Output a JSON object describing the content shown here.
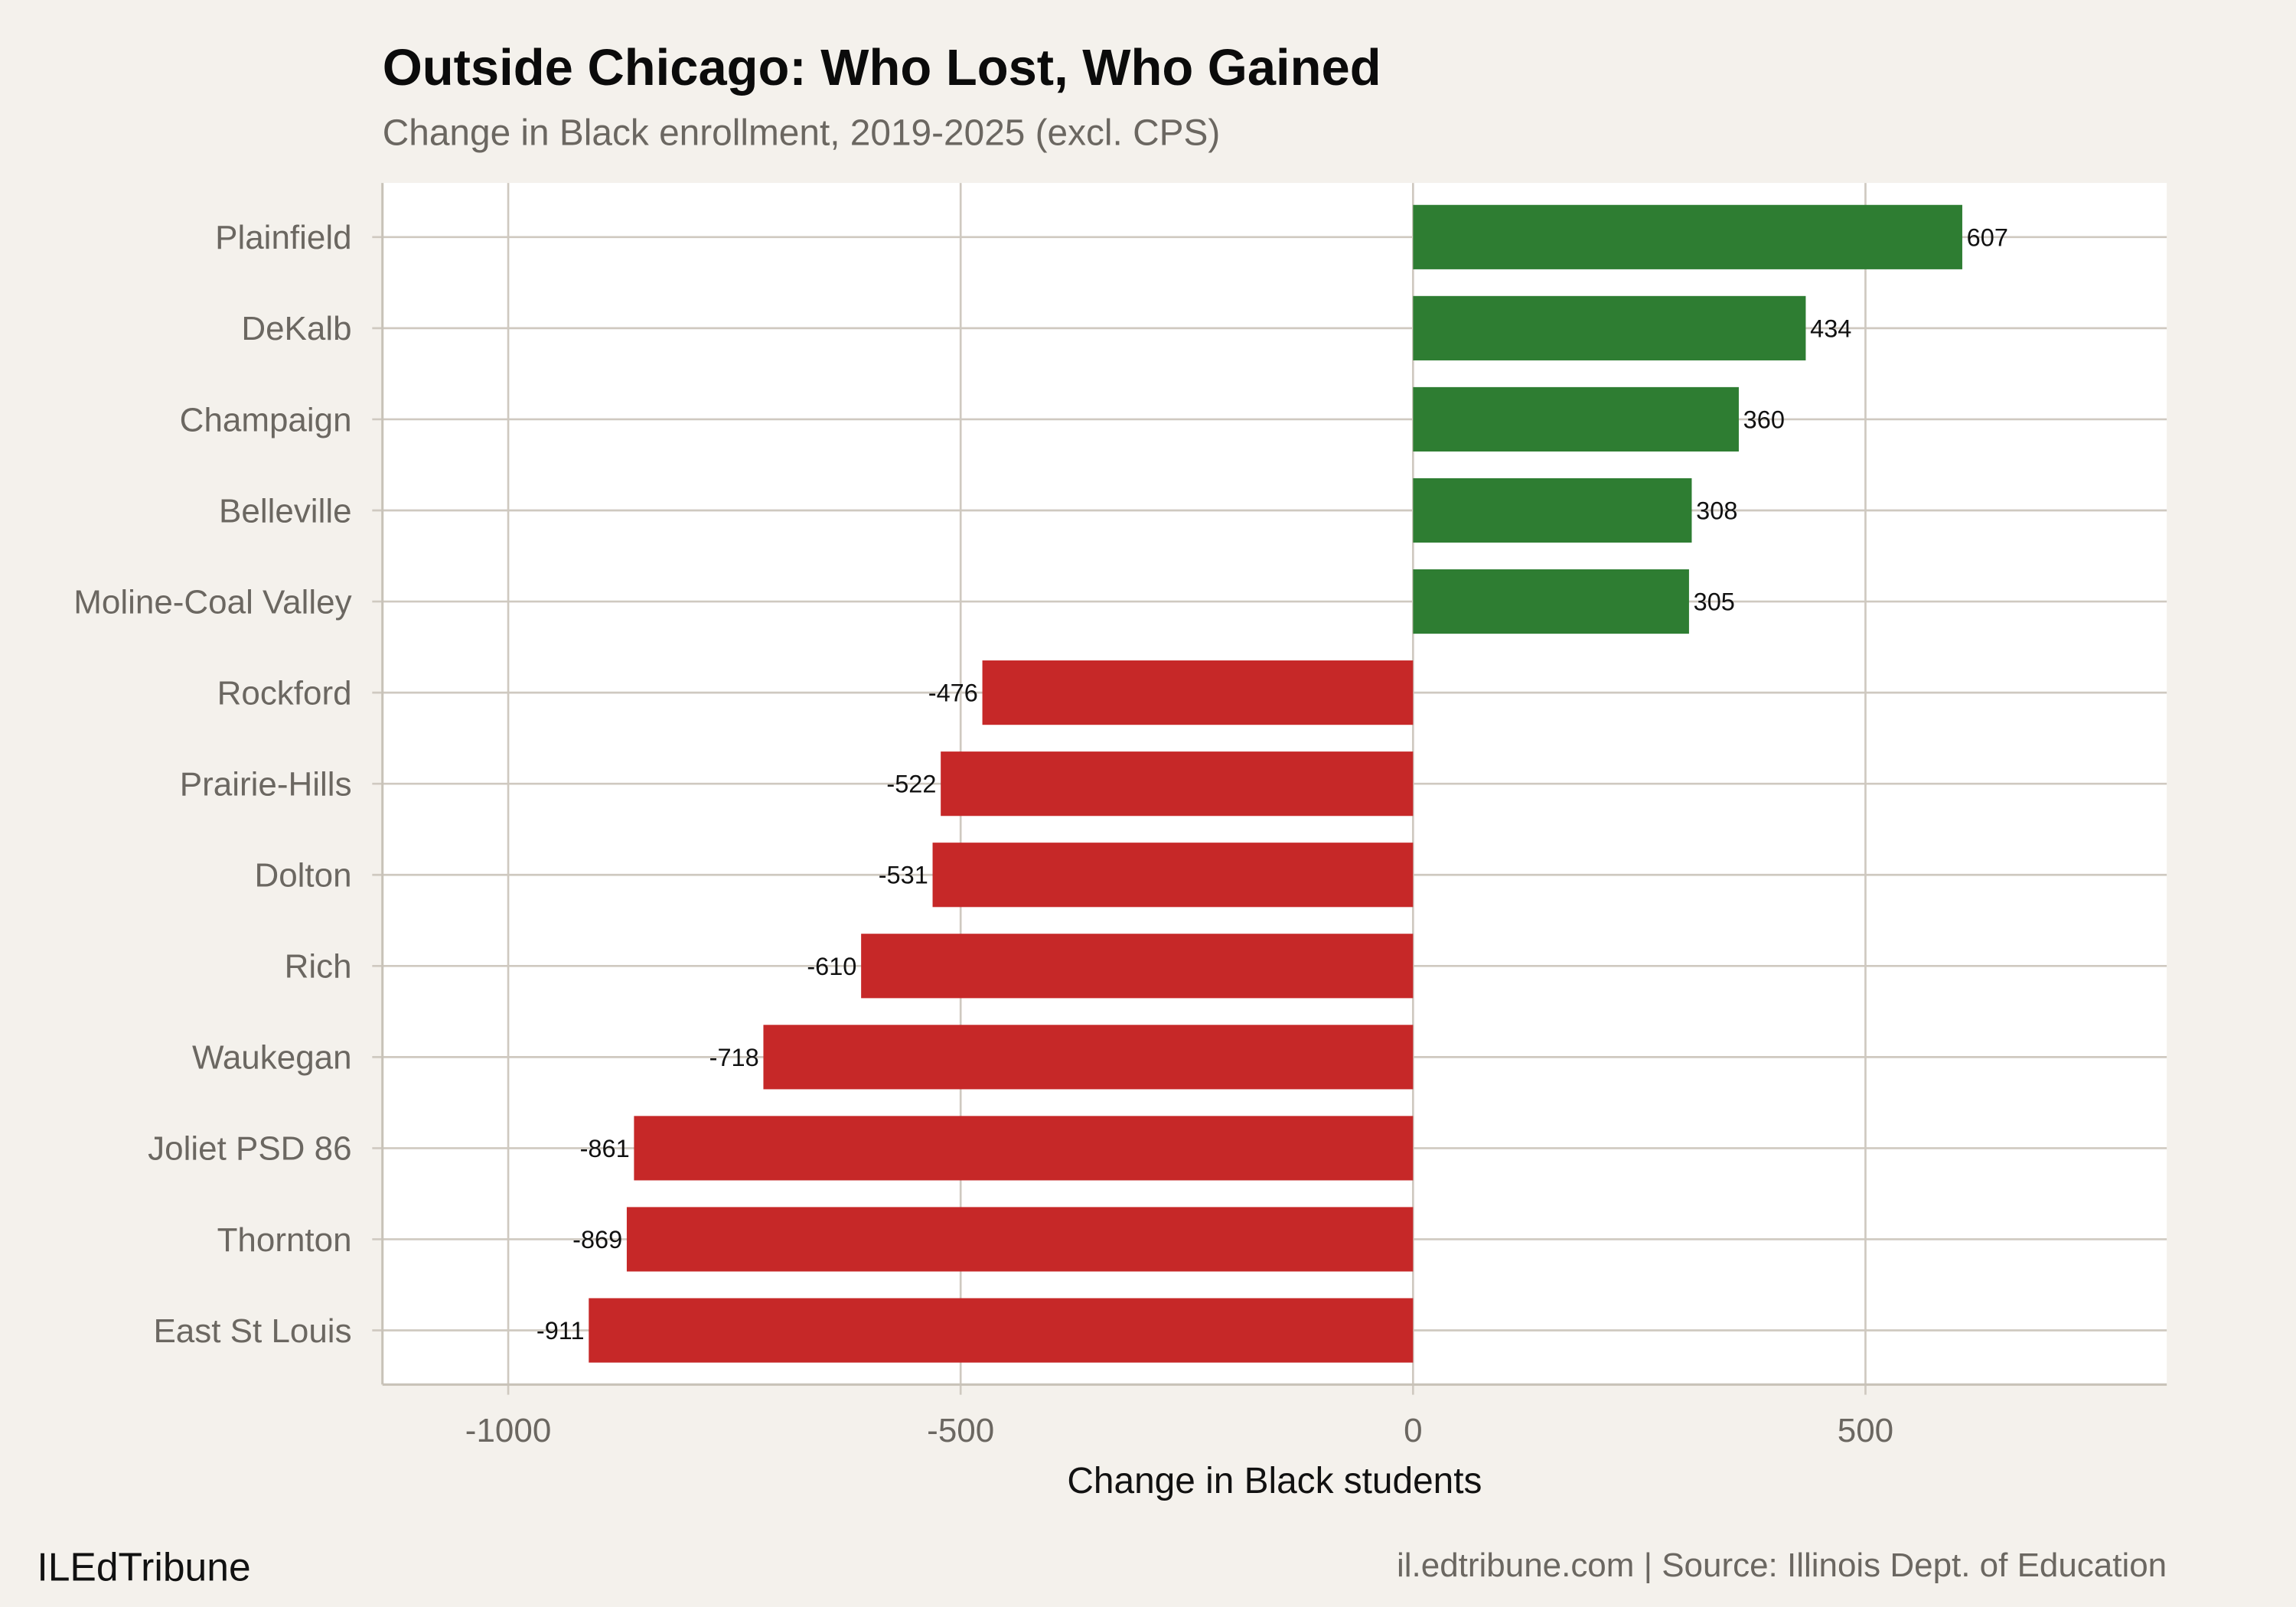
{
  "chart_data": {
    "type": "bar",
    "orientation": "horizontal",
    "title": "Outside Chicago: Who Lost, Who Gained",
    "subtitle": "Change in Black enrollment, 2019-2025 (excl. CPS)",
    "xlabel": "Change in Black students",
    "ylabel": "",
    "categories": [
      "Plainfield",
      "DeKalb",
      "Champaign",
      "Belleville",
      "Moline-Coal Valley",
      "Rockford",
      "Prairie-Hills",
      "Dolton",
      "Rich",
      "Waukegan",
      "Joliet PSD 86",
      "Thornton",
      "East St Louis"
    ],
    "values": [
      607,
      434,
      360,
      308,
      305,
      -476,
      -522,
      -531,
      -610,
      -718,
      -861,
      -869,
      -911
    ],
    "data_labels": [
      "607",
      "434",
      "360",
      "308",
      "305",
      "-476",
      "-522",
      "-531",
      "-610",
      "-718",
      "-861",
      "-869",
      "-911"
    ],
    "xlim": [
      -1139,
      833
    ],
    "xticks": [
      -1000,
      -500,
      0,
      500
    ],
    "xtick_labels": [
      "-1000",
      "-500",
      "0",
      "500"
    ],
    "grid": true,
    "legend": "none",
    "colors": {
      "gain": "#2e7d32",
      "loss": "#c62828",
      "background": "#f4f1ec",
      "panel": "#ffffff",
      "grid": "#cfc9c0"
    }
  },
  "footer": {
    "brand": "ILEdTribune",
    "caption": "il.edtribune.com | Source: Illinois Dept. of Education"
  }
}
